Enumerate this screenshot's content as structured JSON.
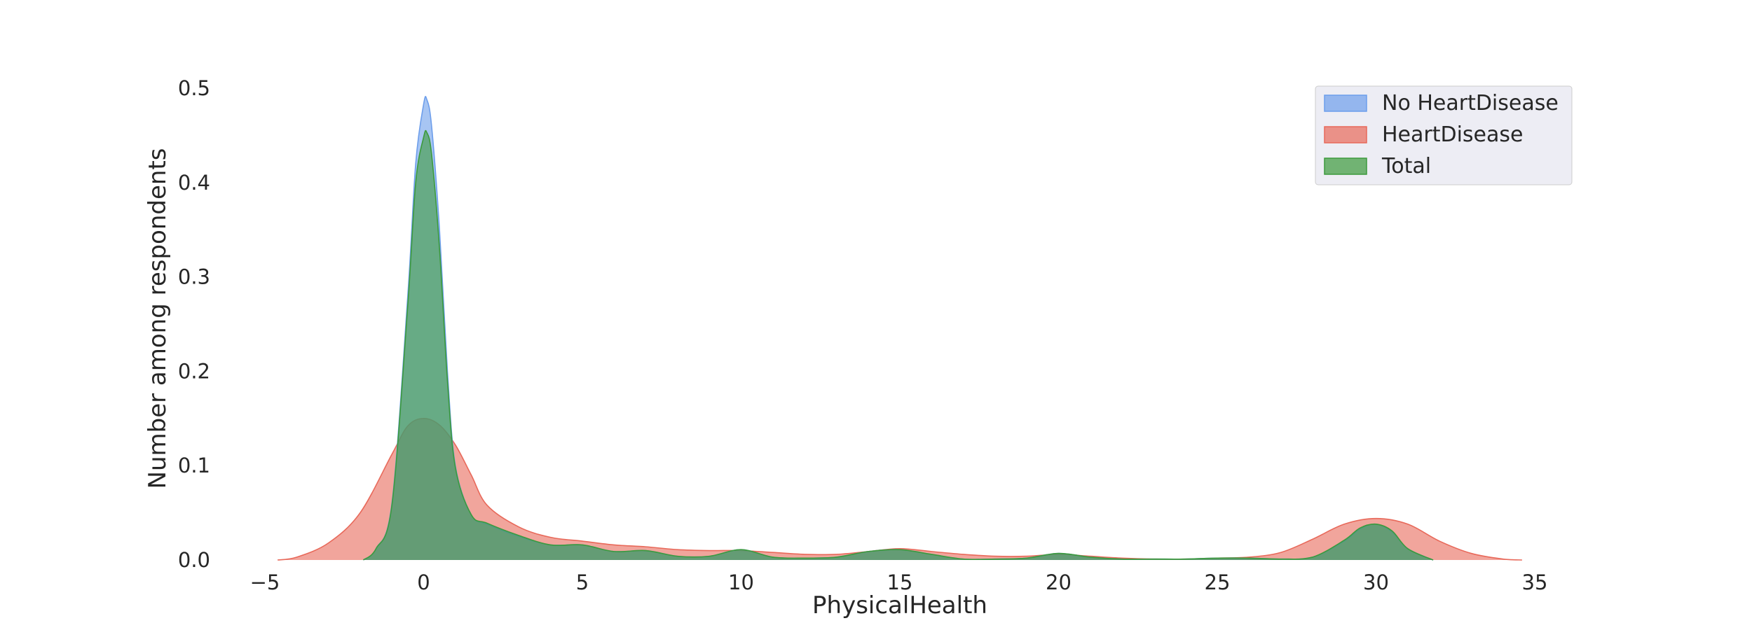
{
  "chart_data": {
    "type": "area",
    "xlabel": "PhysicalHealth",
    "ylabel": "Number among respondents",
    "xlim": [
      -5,
      35
    ],
    "ylim": [
      0,
      0.5
    ],
    "xticks": [
      -5,
      0,
      5,
      10,
      15,
      20,
      25,
      30,
      35
    ],
    "xtick_labels": [
      "−5",
      "0",
      "5",
      "10",
      "15",
      "20",
      "25",
      "30",
      "35"
    ],
    "yticks": [
      0.0,
      0.1,
      0.2,
      0.3,
      0.4,
      0.5
    ],
    "ytick_labels": [
      "0.0",
      "0.1",
      "0.2",
      "0.3",
      "0.4",
      "0.5"
    ],
    "grid": false,
    "legend_position": "top-right",
    "series": [
      {
        "name": "No HeartDisease",
        "color": "#6d9eeb",
        "x": [
          -1.9,
          -1.5,
          -1,
          -0.5,
          -0.25,
          0,
          0.1,
          0.25,
          0.5,
          0.75,
          1,
          1.5,
          2,
          3,
          4,
          5,
          6,
          7,
          8,
          9,
          10,
          11,
          12,
          13,
          14,
          15,
          16,
          17,
          18,
          19,
          20,
          21,
          22,
          23,
          24,
          25,
          26,
          27,
          28,
          29,
          29.5,
          30,
          30.5,
          31,
          31.8
        ],
        "y": [
          0.0,
          0.012,
          0.06,
          0.28,
          0.42,
          0.483,
          0.488,
          0.46,
          0.35,
          0.2,
          0.1,
          0.048,
          0.038,
          0.025,
          0.016,
          0.016,
          0.009,
          0.01,
          0.004,
          0.004,
          0.011,
          0.003,
          0.002,
          0.003,
          0.009,
          0.011,
          0.006,
          0.001,
          0.001,
          0.002,
          0.007,
          0.003,
          0.001,
          0.001,
          0.001,
          0.002,
          0.002,
          0.001,
          0.003,
          0.02,
          0.033,
          0.038,
          0.03,
          0.012,
          0.0
        ]
      },
      {
        "name": "HeartDisease",
        "color": "#e8695a",
        "x": [
          -4.6,
          -4,
          -3,
          -2,
          -1,
          -0.5,
          0,
          0.5,
          1,
          1.5,
          2,
          3,
          4,
          5,
          6,
          7,
          8,
          9,
          10,
          11,
          12,
          13,
          14,
          15,
          16,
          17,
          18,
          19,
          20,
          21,
          22,
          23,
          24,
          25,
          26,
          27,
          28,
          29,
          30,
          31,
          32,
          33,
          34,
          34.6
        ],
        "y": [
          0.0,
          0.003,
          0.018,
          0.05,
          0.112,
          0.142,
          0.15,
          0.143,
          0.122,
          0.09,
          0.058,
          0.035,
          0.024,
          0.02,
          0.016,
          0.014,
          0.011,
          0.01,
          0.01,
          0.008,
          0.006,
          0.006,
          0.009,
          0.012,
          0.009,
          0.006,
          0.004,
          0.004,
          0.006,
          0.004,
          0.002,
          0.001,
          0.001,
          0.002,
          0.003,
          0.008,
          0.022,
          0.038,
          0.044,
          0.038,
          0.02,
          0.007,
          0.001,
          0.0
        ]
      },
      {
        "name": "Total",
        "color": "#3c9a3c",
        "x": [
          -1.9,
          -1.5,
          -1,
          -0.5,
          -0.25,
          0,
          0.1,
          0.25,
          0.5,
          0.75,
          1,
          1.5,
          2,
          3,
          4,
          5,
          6,
          7,
          8,
          9,
          10,
          11,
          12,
          13,
          14,
          15,
          16,
          17,
          18,
          19,
          20,
          21,
          22,
          23,
          24,
          25,
          26,
          27,
          28,
          29,
          29.5,
          30,
          30.5,
          31,
          31.8
        ],
        "y": [
          0.0,
          0.012,
          0.058,
          0.27,
          0.4,
          0.448,
          0.453,
          0.43,
          0.33,
          0.19,
          0.098,
          0.048,
          0.039,
          0.026,
          0.016,
          0.016,
          0.009,
          0.01,
          0.004,
          0.004,
          0.011,
          0.003,
          0.002,
          0.003,
          0.009,
          0.011,
          0.006,
          0.001,
          0.001,
          0.002,
          0.007,
          0.003,
          0.001,
          0.001,
          0.001,
          0.002,
          0.002,
          0.001,
          0.003,
          0.021,
          0.034,
          0.038,
          0.031,
          0.012,
          0.0
        ]
      }
    ]
  }
}
